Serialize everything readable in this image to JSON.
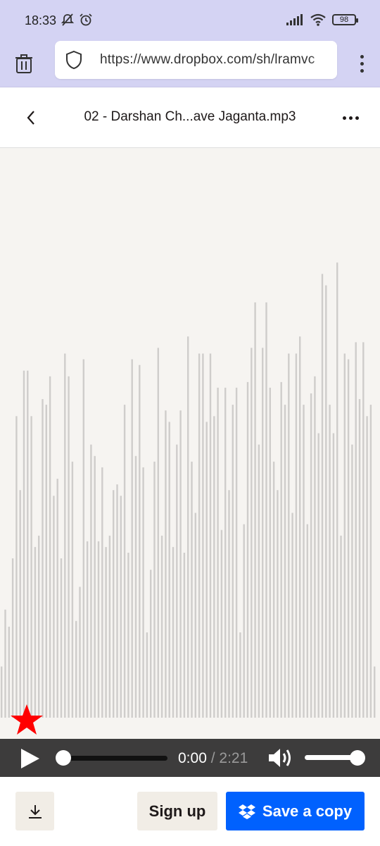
{
  "status_bar": {
    "time": "18:33",
    "battery": "98",
    "icons": [
      "mute-icon",
      "alarm-icon",
      "signal-icon",
      "wifi-icon",
      "battery-icon"
    ]
  },
  "browser": {
    "url": "https://www.dropbox.com/sh/lramvc"
  },
  "header": {
    "title": "02 - Darshan Ch...ave Jaganta.mp3"
  },
  "player": {
    "current_time": "0:00",
    "separator": " / ",
    "total_time": "2:21",
    "progress": 0,
    "volume": 1
  },
  "waveform": {
    "bars": [
      0.09,
      0.19,
      0.16,
      0.28,
      0.53,
      0.4,
      0.61,
      0.61,
      0.53,
      0.3,
      0.32,
      0.56,
      0.55,
      0.6,
      0.39,
      0.42,
      0.28,
      0.64,
      0.6,
      0.45,
      0.17,
      0.23,
      0.63,
      0.31,
      0.48,
      0.46,
      0.31,
      0.44,
      0.3,
      0.32,
      0.4,
      0.41,
      0.39,
      0.55,
      0.29,
      0.63,
      0.46,
      0.62,
      0.44,
      0.15,
      0.26,
      0.45,
      0.65,
      0.32,
      0.54,
      0.52,
      0.3,
      0.48,
      0.54,
      0.29,
      0.67,
      0.45,
      0.36,
      0.64,
      0.64,
      0.52,
      0.64,
      0.53,
      0.58,
      0.33,
      0.58,
      0.4,
      0.55,
      0.58,
      0.15,
      0.34,
      0.59,
      0.65,
      0.73,
      0.48,
      0.65,
      0.73,
      0.58,
      0.45,
      0.4,
      0.59,
      0.55,
      0.64,
      0.36,
      0.64,
      0.67,
      0.55,
      0.34,
      0.57,
      0.6,
      0.5,
      0.78,
      0.76,
      0.55,
      0.5,
      0.8,
      0.32,
      0.64,
      0.63,
      0.48,
      0.66,
      0.56,
      0.66,
      0.53,
      0.55,
      0.09
    ]
  },
  "actions": {
    "signup_label": "Sign up",
    "save_label": "Save a copy"
  }
}
